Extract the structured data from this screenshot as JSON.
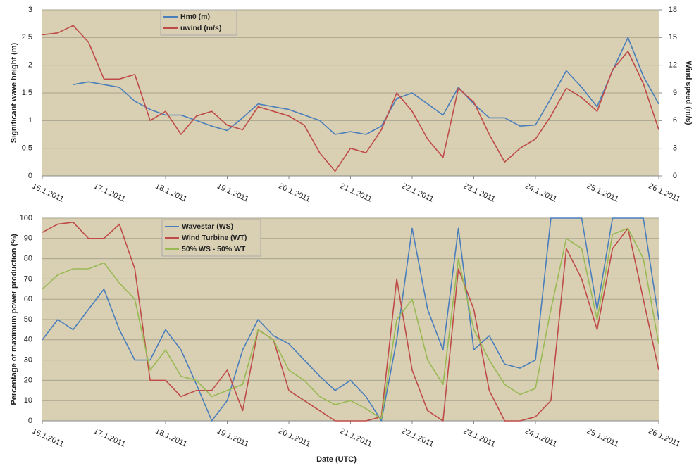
{
  "chart_data": [
    {
      "type": "line",
      "x": [
        0,
        0.25,
        0.5,
        0.75,
        1,
        1.25,
        1.5,
        1.75,
        2,
        2.25,
        2.5,
        2.75,
        3,
        3.25,
        3.5,
        3.75,
        4,
        4.25,
        4.5,
        4.75,
        5,
        5.25,
        5.5,
        5.75,
        6,
        6.25,
        6.5,
        6.75,
        7,
        7.25,
        7.5,
        7.75,
        8,
        8.25,
        8.5,
        8.75,
        9,
        9.25,
        9.5,
        9.75,
        10
      ],
      "xlim": [
        0,
        10
      ],
      "xticks": [
        {
          "value": 0,
          "label": "16.1.2011"
        },
        {
          "value": 1,
          "label": "17.1.2011"
        },
        {
          "value": 2,
          "label": "18.1.2011"
        },
        {
          "value": 3,
          "label": "19.1.2011"
        },
        {
          "value": 4,
          "label": "20.1.2011"
        },
        {
          "value": 5,
          "label": "21.1.2011"
        },
        {
          "value": 6,
          "label": "22.1.2011"
        },
        {
          "value": 7,
          "label": "23.1.2011"
        },
        {
          "value": 8,
          "label": "24.1.2011"
        },
        {
          "value": 9,
          "label": "25.1.2011"
        },
        {
          "value": 10,
          "label": "26.1.2011"
        }
      ],
      "ylabel": "Significant wave height (m)",
      "y2label": "Wind speed (m/s)",
      "ylim": [
        0,
        3
      ],
      "yticks": [
        0,
        0.5,
        1,
        1.5,
        2,
        2.5,
        3
      ],
      "y2lim": [
        0,
        18
      ],
      "y2ticks": [
        0,
        3,
        6,
        9,
        12,
        15,
        18
      ],
      "grid": true,
      "legend": "upper left",
      "series": [
        {
          "name": "Hm0 (m)",
          "color": "#4a7ebb",
          "values": [
            null,
            null,
            1.65,
            1.7,
            1.65,
            1.6,
            1.35,
            1.2,
            1.1,
            1.1,
            1.0,
            0.9,
            0.82,
            1.05,
            1.3,
            1.25,
            1.2,
            1.1,
            1.0,
            0.75,
            0.8,
            0.75,
            0.9,
            1.4,
            1.5,
            1.3,
            1.1,
            1.6,
            1.3,
            1.05,
            1.05,
            0.9,
            0.92,
            1.4,
            1.9,
            1.6,
            1.25,
            1.9,
            2.5,
            1.8,
            1.3
          ]
        },
        {
          "name": "uwind (m/s)",
          "color": "#be4b48",
          "axis": "y2",
          "values": [
            15.3,
            15.5,
            16.3,
            14.5,
            10.5,
            10.5,
            11,
            6,
            7,
            4.5,
            6.5,
            7,
            5.5,
            5,
            7.5,
            7,
            6.5,
            5.5,
            2.5,
            0.5,
            3,
            2.5,
            5,
            9,
            7,
            4,
            2,
            9.5,
            8,
            4.5,
            1.5,
            3,
            4,
            6.5,
            9.5,
            8.5,
            7,
            11.5,
            13.5,
            10,
            5
          ]
        }
      ]
    },
    {
      "type": "line",
      "x": [
        0,
        0.25,
        0.5,
        0.75,
        1,
        1.25,
        1.5,
        1.75,
        2,
        2.25,
        2.5,
        2.75,
        3,
        3.25,
        3.5,
        3.75,
        4,
        4.25,
        4.5,
        4.75,
        5,
        5.25,
        5.5,
        5.75,
        6,
        6.25,
        6.5,
        6.75,
        7,
        7.25,
        7.5,
        7.75,
        8,
        8.25,
        8.5,
        8.75,
        9,
        9.25,
        9.5,
        9.75,
        10
      ],
      "xlim": [
        0,
        10
      ],
      "xticks": [
        {
          "value": 0,
          "label": "16.1.2011"
        },
        {
          "value": 1,
          "label": "17.1.2011"
        },
        {
          "value": 2,
          "label": "18.1.2011"
        },
        {
          "value": 3,
          "label": "19.1.2011"
        },
        {
          "value": 4,
          "label": "20.1.2011"
        },
        {
          "value": 5,
          "label": "21.1.2011"
        },
        {
          "value": 6,
          "label": "22.1.2011"
        },
        {
          "value": 7,
          "label": "23.1.2011"
        },
        {
          "value": 8,
          "label": "24.1.2011"
        },
        {
          "value": 9,
          "label": "25.1.2011"
        },
        {
          "value": 10,
          "label": "26.1.2011"
        }
      ],
      "xlabel": "Date (UTC)",
      "ylabel": "Percentage of maximum power production (%)",
      "ylim": [
        0,
        100
      ],
      "yticks": [
        0,
        10,
        20,
        30,
        40,
        50,
        60,
        70,
        80,
        90,
        100
      ],
      "grid": true,
      "legend": "upper left",
      "series": [
        {
          "name": "Wavestar (WS)",
          "color": "#4a7ebb",
          "values": [
            40,
            50,
            45,
            55,
            65,
            45,
            30,
            30,
            45,
            35,
            18,
            0,
            10,
            35,
            50,
            42,
            38,
            30,
            22,
            15,
            20,
            12,
            0,
            40,
            95,
            55,
            35,
            95,
            35,
            42,
            28,
            26,
            30,
            100,
            100,
            100,
            55,
            100,
            100,
            100,
            50
          ]
        },
        {
          "name": "Wind Turbine (WT)",
          "color": "#be4b48",
          "values": [
            93,
            97,
            98,
            90,
            90,
            97,
            75,
            20,
            20,
            12,
            15,
            15,
            25,
            5,
            45,
            40,
            15,
            10,
            5,
            0,
            0,
            0,
            2,
            70,
            25,
            5,
            0,
            75,
            55,
            15,
            0,
            0,
            2,
            10,
            85,
            70,
            45,
            85,
            95,
            60,
            25
          ]
        },
        {
          "name": "50% WS - 50% WT",
          "color": "#98b954",
          "values": [
            65,
            72,
            75,
            75,
            78,
            68,
            60,
            25,
            35,
            22,
            20,
            12,
            15,
            18,
            45,
            40,
            25,
            20,
            12,
            8,
            10,
            6,
            1,
            50,
            60,
            30,
            18,
            80,
            45,
            30,
            18,
            13,
            16,
            55,
            90,
            85,
            50,
            92,
            95,
            80,
            38
          ]
        }
      ]
    }
  ]
}
